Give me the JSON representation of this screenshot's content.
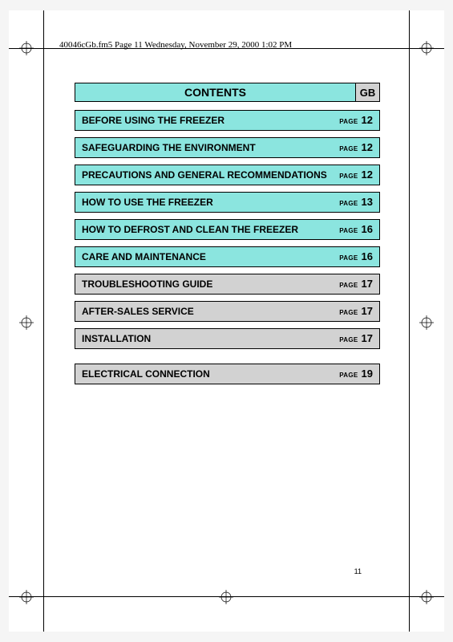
{
  "header": "40046cGb.fm5  Page 11  Wednesday, November 29, 2000  1:02 PM",
  "title": "CONTENTS",
  "lang": "GB",
  "page_footer": "11",
  "page_label": "PAGE",
  "colors": {
    "cyan": "#8be5df",
    "gray": "#d2d2d2",
    "page_bg": "#ffffff",
    "outer_bg": "#f5f5f5"
  },
  "toc": [
    {
      "title": "BEFORE USING THE FREEZER",
      "page": "12",
      "style": "cyan"
    },
    {
      "title": "SAFEGUARDING THE ENVIRONMENT",
      "page": "12",
      "style": "cyan"
    },
    {
      "title": "PRECAUTIONS AND GENERAL RECOMMENDATIONS",
      "page": "12",
      "style": "cyan"
    },
    {
      "title": "HOW TO USE THE FREEZER",
      "page": "13",
      "style": "cyan"
    },
    {
      "title": "HOW TO DEFROST AND CLEAN THE FREEZER",
      "page": "16",
      "style": "cyan"
    },
    {
      "title": "CARE AND MAINTENANCE",
      "page": "16",
      "style": "cyan"
    },
    {
      "title": "TROUBLESHOOTING GUIDE",
      "page": "17",
      "style": "gray"
    },
    {
      "title": "AFTER-SALES SERVICE",
      "page": "17",
      "style": "gray"
    },
    {
      "title": "INSTALLATION",
      "page": "17",
      "style": "gray"
    },
    {
      "title": "ELECTRICAL CONNECTION",
      "page": "19",
      "style": "gray",
      "gap": true
    }
  ]
}
